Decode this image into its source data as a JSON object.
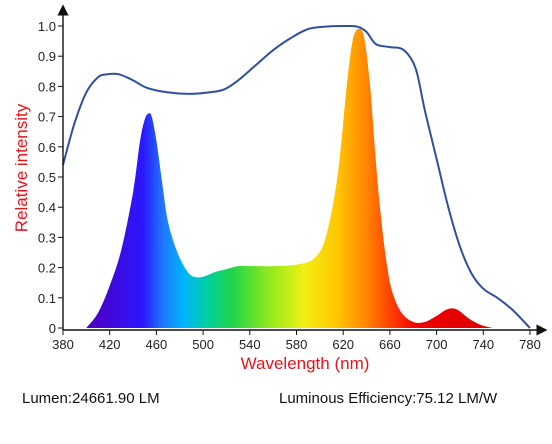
{
  "chart_data": {
    "type": "area",
    "title": "",
    "xlabel": "Wavelength (nm)",
    "ylabel": "Relative intensity",
    "xlim": [
      380,
      780
    ],
    "ylim": [
      0,
      1.0
    ],
    "x_ticks": [
      380,
      420,
      460,
      500,
      540,
      580,
      620,
      660,
      700,
      740,
      780
    ],
    "y_ticks": [
      0,
      0.1,
      0.2,
      0.3,
      0.4,
      0.5,
      0.6,
      0.7,
      0.8,
      0.9,
      1.0
    ],
    "y_tick_labels": [
      "0",
      "0.1",
      "0.2",
      "0.3",
      "0.4",
      "0.5",
      "0.6",
      "0.7",
      "0.8",
      "0.9",
      "1.0"
    ],
    "grid": false,
    "series": [
      {
        "style": "filled spectrum (visible-light rainbow gradient)",
        "points": [
          [
            400,
            0.0
          ],
          [
            410,
            0.05
          ],
          [
            420,
            0.14
          ],
          [
            430,
            0.26
          ],
          [
            440,
            0.45
          ],
          [
            446,
            0.62
          ],
          [
            450,
            0.69
          ],
          [
            453,
            0.71
          ],
          [
            456,
            0.7
          ],
          [
            460,
            0.62
          ],
          [
            465,
            0.48
          ],
          [
            470,
            0.35
          ],
          [
            478,
            0.25
          ],
          [
            486,
            0.19
          ],
          [
            492,
            0.17
          ],
          [
            500,
            0.17
          ],
          [
            510,
            0.185
          ],
          [
            520,
            0.195
          ],
          [
            530,
            0.205
          ],
          [
            540,
            0.205
          ],
          [
            560,
            0.205
          ],
          [
            580,
            0.21
          ],
          [
            595,
            0.23
          ],
          [
            605,
            0.3
          ],
          [
            615,
            0.5
          ],
          [
            623,
            0.8
          ],
          [
            628,
            0.95
          ],
          [
            633,
            0.99
          ],
          [
            638,
            0.96
          ],
          [
            643,
            0.8
          ],
          [
            648,
            0.55
          ],
          [
            652,
            0.38
          ],
          [
            657,
            0.22
          ],
          [
            662,
            0.12
          ],
          [
            670,
            0.05
          ],
          [
            680,
            0.02
          ],
          [
            690,
            0.02
          ],
          [
            700,
            0.04
          ],
          [
            708,
            0.06
          ],
          [
            714,
            0.065
          ],
          [
            720,
            0.055
          ],
          [
            728,
            0.03
          ],
          [
            738,
            0.01
          ],
          [
            748,
            0.0
          ]
        ],
        "color": "spectrum-gradient"
      },
      {
        "style": "outline line",
        "points": [
          [
            380,
            0.54
          ],
          [
            390,
            0.68
          ],
          [
            400,
            0.78
          ],
          [
            410,
            0.83
          ],
          [
            418,
            0.84
          ],
          [
            428,
            0.84
          ],
          [
            440,
            0.82
          ],
          [
            452,
            0.795
          ],
          [
            470,
            0.78
          ],
          [
            488,
            0.775
          ],
          [
            505,
            0.78
          ],
          [
            518,
            0.79
          ],
          [
            530,
            0.82
          ],
          [
            545,
            0.87
          ],
          [
            560,
            0.92
          ],
          [
            575,
            0.96
          ],
          [
            590,
            0.99
          ],
          [
            605,
            0.998
          ],
          [
            620,
            1.0
          ],
          [
            632,
            0.998
          ],
          [
            640,
            0.98
          ],
          [
            648,
            0.94
          ],
          [
            660,
            0.93
          ],
          [
            672,
            0.92
          ],
          [
            682,
            0.86
          ],
          [
            690,
            0.72
          ],
          [
            700,
            0.56
          ],
          [
            710,
            0.4
          ],
          [
            720,
            0.27
          ],
          [
            730,
            0.18
          ],
          [
            740,
            0.13
          ],
          [
            752,
            0.1
          ],
          [
            765,
            0.06
          ],
          [
            780,
            0.0
          ]
        ],
        "color": "#2f4f9f"
      }
    ]
  },
  "footer": {
    "lumen": "Lumen:24661.90 LM",
    "efficiency": "Luminous Efficiency:75.12 LM/W"
  }
}
